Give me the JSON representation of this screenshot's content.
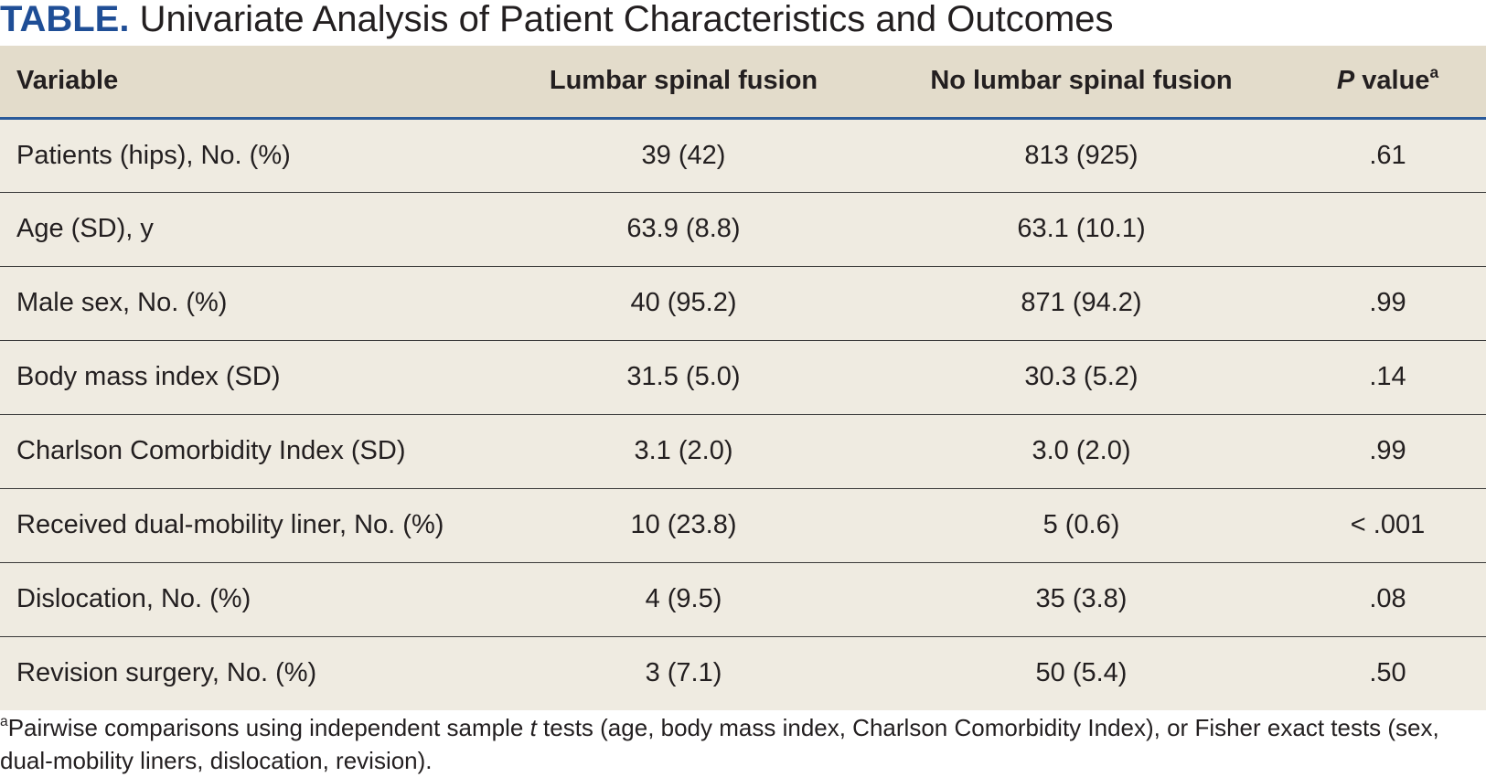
{
  "title": {
    "label": "TABLE.",
    "text": "Univariate Analysis of Patient Characteristics and Outcomes"
  },
  "table": {
    "headers": [
      "Variable",
      "Lumbar spinal fusion",
      "No lumbar spinal fusion",
      {
        "italic": "P",
        "text": " value",
        "sup": "a"
      }
    ],
    "rows": [
      [
        "Patients (hips), No. (%)",
        "39 (42)",
        "813 (925)",
        ".61"
      ],
      [
        "Age (SD), y",
        "63.9 (8.8)",
        "63.1 (10.1)",
        null
      ],
      [
        "Male sex, No. (%)",
        "40 (95.2)",
        "871 (94.2)",
        ".99"
      ],
      [
        "Body mass index (SD)",
        "31.5 (5.0)",
        "30.3 (5.2)",
        ".14"
      ],
      [
        "Charlson Comorbidity Index (SD)",
        "3.1 (2.0)",
        "3.0 (2.0)",
        ".99"
      ],
      [
        "Received dual-mobility liner, No. (%)",
        "10 (23.8)",
        "5 (0.6)",
        "< .001"
      ],
      [
        "Dislocation, No. (%)",
        "4 (9.5)",
        "35 (3.8)",
        ".08"
      ],
      [
        "Revision surgery, No. (%)",
        "3 (7.1)",
        "50 (5.4)",
        ".50"
      ]
    ]
  },
  "footnote": {
    "marker": "a",
    "parts": [
      "Pairwise comparisons using independent sample ",
      "t",
      " tests (age, body mass index, Charlson Comorbidity Index), or Fisher exact tests (sex, dual-mobility liners, dislocation, revision)."
    ]
  }
}
